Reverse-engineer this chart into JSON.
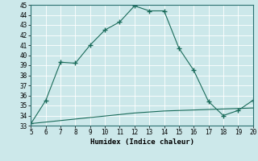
{
  "x": [
    5,
    6,
    7,
    8,
    9,
    10,
    11,
    12,
    13,
    14,
    15,
    16,
    17,
    18,
    19,
    20
  ],
  "y_upper": [
    33.2,
    35.5,
    39.3,
    39.2,
    41.0,
    42.5,
    43.3,
    44.9,
    44.4,
    44.4,
    40.7,
    38.5,
    35.4,
    34.0,
    34.5,
    35.5
  ],
  "y_lower": [
    33.2,
    33.35,
    33.5,
    33.65,
    33.8,
    33.95,
    34.1,
    34.25,
    34.35,
    34.45,
    34.5,
    34.55,
    34.6,
    34.65,
    34.7,
    34.75
  ],
  "line_color": "#1a6b5a",
  "bg_color": "#cce8ea",
  "grid_color": "#b0d4d8",
  "xlabel": "Humidex (Indice chaleur)",
  "ylim": [
    33,
    45
  ],
  "xlim": [
    5,
    20
  ],
  "yticks": [
    33,
    34,
    35,
    36,
    37,
    38,
    39,
    40,
    41,
    42,
    43,
    44,
    45
  ],
  "xticks": [
    5,
    6,
    7,
    8,
    9,
    10,
    11,
    12,
    13,
    14,
    15,
    16,
    17,
    18,
    19,
    20
  ]
}
